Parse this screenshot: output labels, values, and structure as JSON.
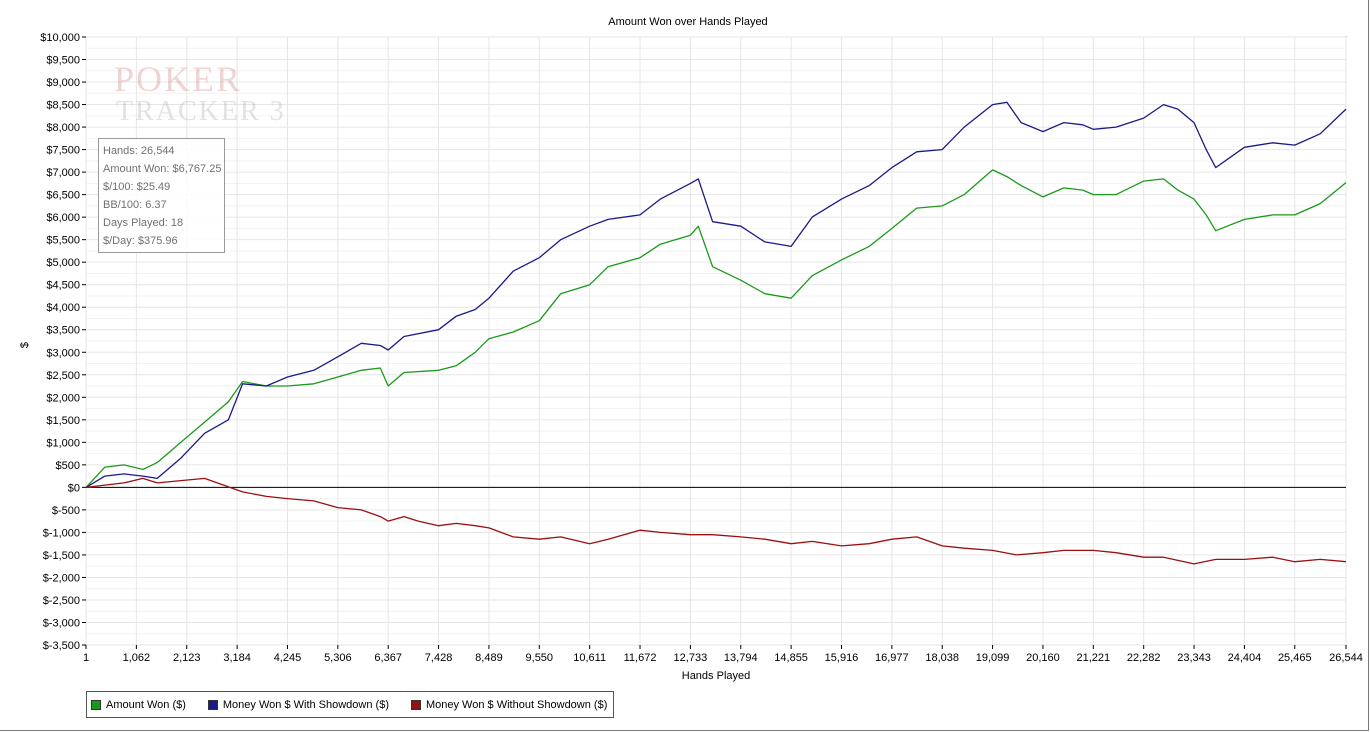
{
  "window": {
    "brand_watermark": [
      "POKER",
      "TRACKER 3"
    ]
  },
  "info_box": {
    "lines": [
      "Hands: 26,544",
      "Amount Won: $6,767.25",
      "$/100: $25.49",
      "BB/100: 6.37",
      "Days Played: 18",
      "$/Day: $375.96"
    ]
  },
  "chart_data": {
    "type": "line",
    "title": "Amount Won over Hands Played",
    "xlabel": "Hands Played",
    "ylabel": "$",
    "xlim": [
      1,
      26544
    ],
    "ylim": [
      -3500,
      10000
    ],
    "grid": true,
    "legend_position": "bottom-left",
    "x_ticks": [
      1,
      1062,
      2123,
      3184,
      4245,
      5306,
      6367,
      7428,
      8489,
      9550,
      10611,
      11672,
      12733,
      13794,
      14855,
      15916,
      16977,
      18038,
      19099,
      20160,
      21221,
      22282,
      23343,
      24404,
      25465,
      26544
    ],
    "x_tick_labels": [
      "1",
      "1,062",
      "2,123",
      "3,184",
      "4,245",
      "5,306",
      "6,367",
      "7,428",
      "8,489",
      "9,550",
      "10,611",
      "11,672",
      "12,733",
      "13,794",
      "14,855",
      "15,916",
      "16,977",
      "18,038",
      "19,099",
      "20,160",
      "21,221",
      "22,282",
      "23,343",
      "24,404",
      "25,465",
      "26,544"
    ],
    "y_ticks": [
      10000,
      9500,
      9000,
      8500,
      8000,
      7500,
      7000,
      6500,
      6000,
      5500,
      5000,
      4500,
      4000,
      3500,
      3000,
      2500,
      2000,
      1500,
      1000,
      500,
      0,
      -500,
      -1000,
      -1500,
      -2000,
      -2500,
      -3000,
      -3500
    ],
    "y_tick_labels": [
      "$10,000",
      "$9,500",
      "$9,000",
      "$8,500",
      "$8,000",
      "$7,500",
      "$7,000",
      "$6,500",
      "$6,000",
      "$5,500",
      "$5,000",
      "$4,500",
      "$4,000",
      "$3,500",
      "$3,000",
      "$2,500",
      "$2,000",
      "$1,500",
      "$1,000",
      "$500",
      "$0",
      "$-500",
      "$-1,000",
      "$-1,500",
      "$-2,000",
      "$-2,500",
      "$-3,000",
      "$-3,500"
    ],
    "series": [
      {
        "name": "Amount Won ($)",
        "color": "#1a9a1a",
        "x": [
          1,
          400,
          800,
          1200,
          1500,
          2000,
          2500,
          3000,
          3300,
          3800,
          4245,
          4800,
          5306,
          5800,
          6200,
          6367,
          6700,
          7428,
          7800,
          8200,
          8489,
          9000,
          9550,
          10000,
          10611,
          11000,
          11672,
          12100,
          12733,
          12900,
          13200,
          13794,
          14300,
          14855,
          15300,
          15916,
          16500,
          16977,
          17500,
          18038,
          18500,
          19099,
          19400,
          19700,
          20160,
          20600,
          21000,
          21221,
          21700,
          22282,
          22700,
          23000,
          23343,
          23600,
          23800,
          24404,
          25000,
          25465,
          26000,
          26544
        ],
        "values": [
          0,
          450,
          500,
          400,
          550,
          1000,
          1450,
          1900,
          2350,
          2250,
          2250,
          2300,
          2450,
          2600,
          2650,
          2250,
          2550,
          2600,
          2700,
          3000,
          3300,
          3450,
          3700,
          4300,
          4500,
          4900,
          5100,
          5400,
          5600,
          5800,
          4900,
          4600,
          4300,
          4200,
          4700,
          5050,
          5350,
          5750,
          6200,
          6250,
          6500,
          7050,
          6900,
          6700,
          6450,
          6650,
          6600,
          6500,
          6500,
          6800,
          6850,
          6600,
          6400,
          6050,
          5700,
          5950,
          6050,
          6050,
          6300,
          6767
        ]
      },
      {
        "name": "Money Won $ With Showdown ($)",
        "color": "#1a1a8a",
        "x": [
          1,
          400,
          800,
          1200,
          1500,
          2000,
          2500,
          3000,
          3300,
          3800,
          4245,
          4800,
          5306,
          5800,
          6200,
          6367,
          6700,
          7428,
          7800,
          8200,
          8489,
          9000,
          9550,
          10000,
          10611,
          11000,
          11672,
          12100,
          12733,
          12900,
          13200,
          13794,
          14300,
          14855,
          15300,
          15916,
          16500,
          16977,
          17500,
          18038,
          18500,
          19099,
          19400,
          19700,
          20160,
          20600,
          21000,
          21221,
          21700,
          22282,
          22700,
          23000,
          23343,
          23600,
          23800,
          24404,
          25000,
          25465,
          26000,
          26544
        ],
        "values": [
          0,
          250,
          300,
          250,
          200,
          650,
          1200,
          1500,
          2300,
          2250,
          2450,
          2600,
          2900,
          3200,
          3150,
          3050,
          3350,
          3500,
          3800,
          3950,
          4200,
          4800,
          5100,
          5500,
          5800,
          5950,
          6050,
          6400,
          6750,
          6850,
          5900,
          5800,
          5450,
          5350,
          6000,
          6400,
          6700,
          7100,
          7450,
          7500,
          8000,
          8500,
          8550,
          8100,
          7900,
          8100,
          8050,
          7950,
          8000,
          8200,
          8500,
          8400,
          8100,
          7500,
          7100,
          7550,
          7650,
          7600,
          7850,
          8400
        ]
      },
      {
        "name": "Money Won $ Without Showdown ($)",
        "color": "#9a1010",
        "x": [
          1,
          400,
          800,
          1200,
          1500,
          2000,
          2500,
          2900,
          3300,
          3800,
          4245,
          4800,
          5306,
          5800,
          6200,
          6367,
          6700,
          7000,
          7428,
          7800,
          8200,
          8489,
          9000,
          9550,
          10000,
          10611,
          11000,
          11672,
          12100,
          12733,
          13200,
          13794,
          14300,
          14855,
          15300,
          15916,
          16500,
          16977,
          17500,
          18038,
          18500,
          19099,
          19600,
          20160,
          20600,
          21221,
          21700,
          22282,
          22700,
          23343,
          23800,
          24404,
          25000,
          25465,
          26000,
          26544
        ],
        "values": [
          0,
          50,
          100,
          200,
          100,
          150,
          200,
          50,
          -100,
          -200,
          -250,
          -300,
          -450,
          -500,
          -650,
          -750,
          -650,
          -750,
          -850,
          -800,
          -850,
          -900,
          -1100,
          -1150,
          -1100,
          -1250,
          -1150,
          -950,
          -1000,
          -1050,
          -1050,
          -1100,
          -1150,
          -1250,
          -1200,
          -1300,
          -1250,
          -1150,
          -1100,
          -1300,
          -1350,
          -1400,
          -1500,
          -1450,
          -1400,
          -1400,
          -1450,
          -1550,
          -1550,
          -1700,
          -1600,
          -1600,
          -1550,
          -1650,
          -1600,
          -1650
        ]
      }
    ]
  }
}
